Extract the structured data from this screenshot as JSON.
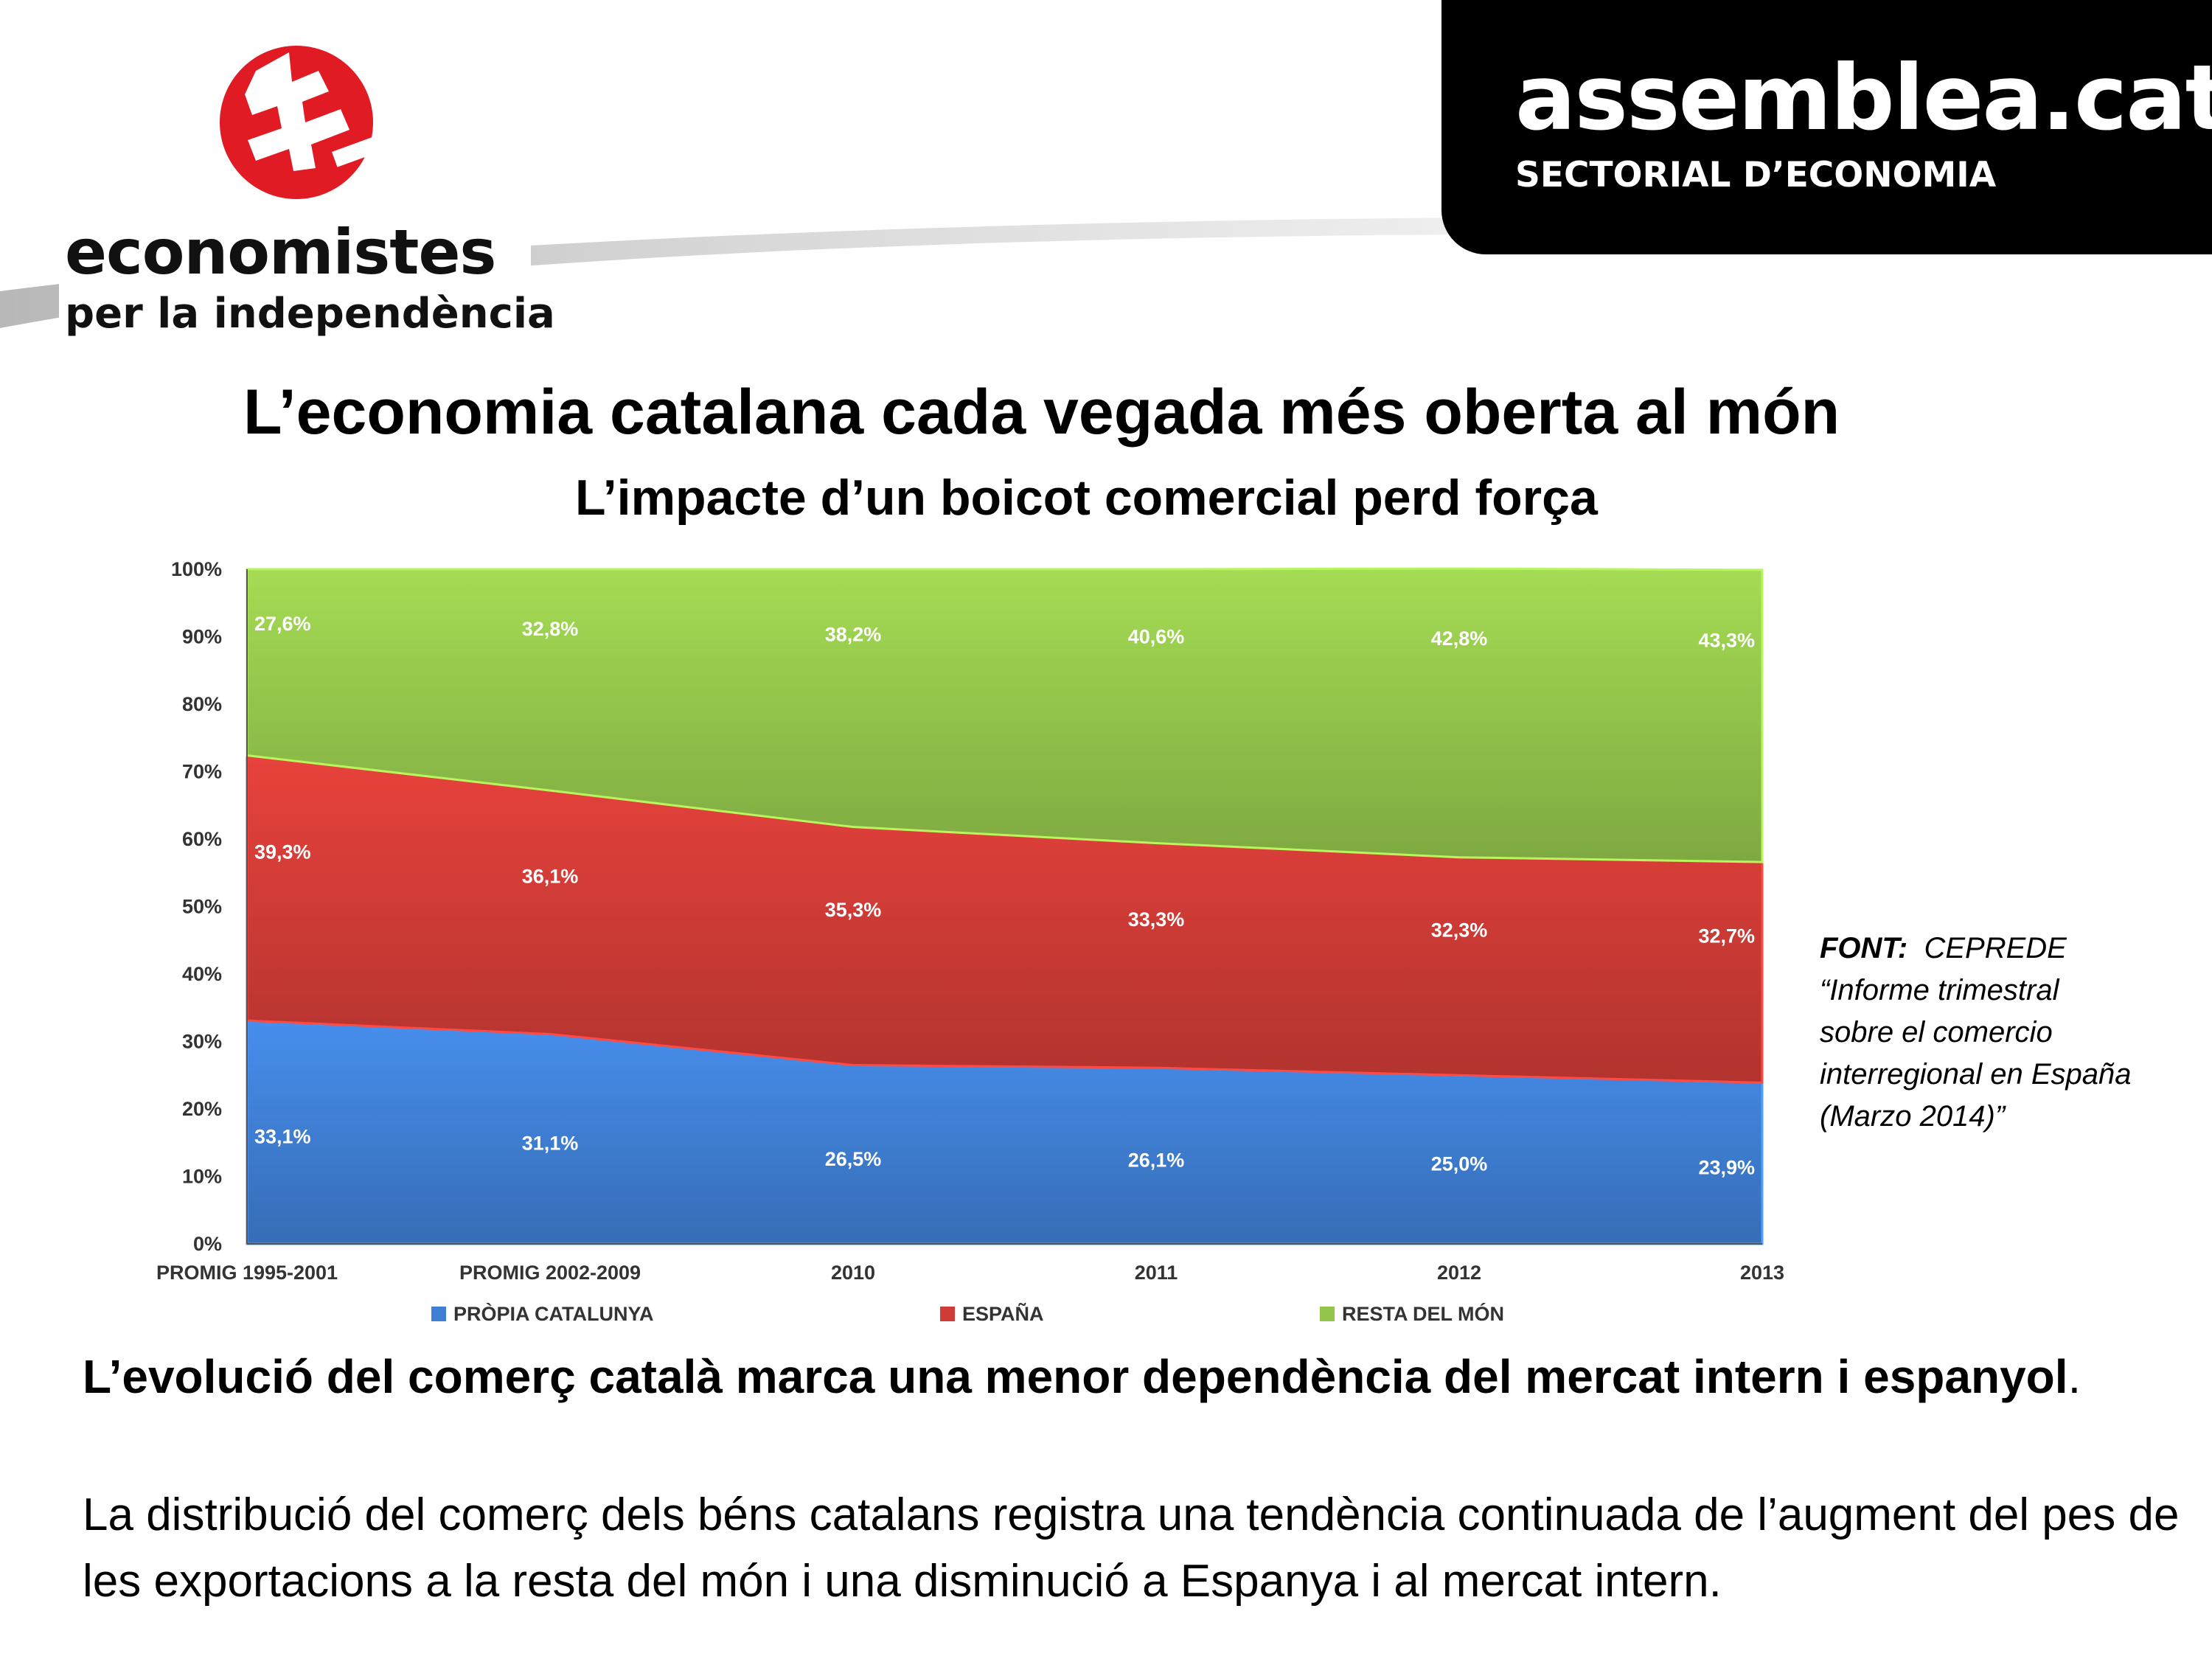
{
  "header": {
    "left_logo": {
      "name_line1": "economistes",
      "name_line2": "per la independència"
    },
    "right_logo": {
      "name": "assemblea.cat",
      "subtitle": "SECTORIAL D’ECONOMIA"
    }
  },
  "title": "L’economia catalana cada vegada més oberta al món",
  "subtitle": "L’impacte d’un boicot comercial perd força",
  "chart_data": {
    "type": "area",
    "stacked": true,
    "categories": [
      "PROMIG 1995-2001",
      "PROMIG 2002-2009",
      "2010",
      "2011",
      "2012",
      "2013"
    ],
    "series": [
      {
        "name": "PRÒPIA CATALUNYA",
        "color": "#3f7fd4",
        "values": [
          33.1,
          31.1,
          26.5,
          26.1,
          25.0,
          23.9
        ],
        "labels": [
          "33,1%",
          "31,1%",
          "26,5%",
          "26,1%",
          "25,0%",
          "23,9%"
        ]
      },
      {
        "name": "ESPAÑA",
        "color": "#cf3b36",
        "values": [
          39.3,
          36.1,
          35.3,
          33.3,
          32.3,
          32.7
        ],
        "labels": [
          "39,3%",
          "36,1%",
          "35,3%",
          "33,3%",
          "32,3%",
          "32,7%"
        ]
      },
      {
        "name": "RESTA DEL MÓN",
        "color": "#93c44b",
        "values": [
          27.6,
          32.8,
          38.2,
          40.6,
          42.8,
          43.3
        ],
        "labels": [
          "27,6%",
          "32,8%",
          "38,2%",
          "40,6%",
          "42,8%",
          "43,3%"
        ]
      }
    ],
    "ylim": [
      0,
      100
    ],
    "y_ticks": [
      "0%",
      "10%",
      "20%",
      "30%",
      "40%",
      "50%",
      "60%",
      "70%",
      "80%",
      "90%",
      "100%"
    ],
    "legend": "bottom",
    "grid": false
  },
  "source": {
    "label": "FONT:",
    "line1": "CEPREDE",
    "line2": "“Informe trimestral",
    "line3": "sobre el comercio",
    "line4": "interregional en España",
    "line5": "(Marzo 2014)”"
  },
  "conclusion": "L’evolució del comerç català marca una menor dependència del mercat intern i espanyol",
  "conclusion_end": ".",
  "body": "La distribució del comerç dels béns catalans registra una tendència continuada de l’augment del pes de les exportacions a la resta del món i una disminució a Espanya i al mercat intern."
}
